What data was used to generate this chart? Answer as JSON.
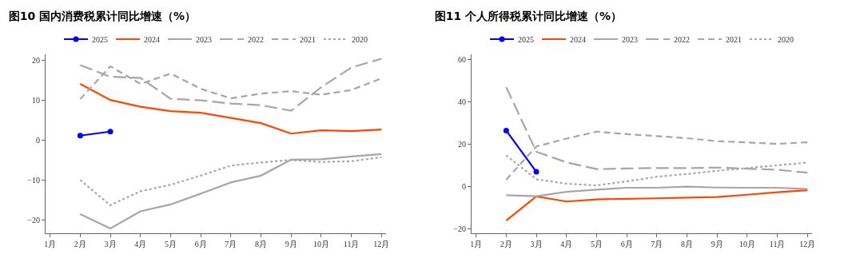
{
  "chart_data": [
    {
      "type": "line",
      "title": "图10 国内消费税累计同比增速（%）",
      "categories": [
        "1月",
        "2月",
        "3月",
        "4月",
        "5月",
        "6月",
        "7月",
        "8月",
        "9月",
        "10月",
        "11月",
        "12月"
      ],
      "ylim": [
        -23.3,
        21.4
      ],
      "yticks": [
        -20,
        -10,
        0,
        10,
        20
      ],
      "grid": false,
      "legend": "top",
      "series": [
        {
          "name": "2025",
          "color": "#0000ff",
          "line_style": "solid",
          "marker": "circle",
          "values": [
            null,
            1.1,
            2.1,
            null,
            null,
            null,
            null,
            null,
            null,
            null,
            null,
            null
          ]
        },
        {
          "name": "2024",
          "color": "#ff4500",
          "line_style": "solid",
          "marker": "none",
          "values": [
            null,
            14.0,
            10.0,
            8.3,
            7.2,
            6.8,
            5.5,
            4.2,
            1.6,
            2.4,
            2.2,
            2.6
          ]
        },
        {
          "name": "2023",
          "color": "#a6a6a6",
          "line_style": "solid",
          "marker": "none",
          "values": [
            null,
            -18.5,
            -22.1,
            -17.8,
            -16.1,
            -13.4,
            -10.6,
            -8.9,
            -4.9,
            -4.8,
            -4.1,
            -3.5
          ]
        },
        {
          "name": "2022",
          "color": "#a6a6a6",
          "line_style": "longdash",
          "marker": "none",
          "values": [
            null,
            18.7,
            15.8,
            15.5,
            10.3,
            9.9,
            9.1,
            8.7,
            7.3,
            13.2,
            18.1,
            20.3
          ]
        },
        {
          "name": "2021",
          "color": "#a6a6a6",
          "line_style": "dashed",
          "marker": "none",
          "values": [
            null,
            10.2,
            18.4,
            14.0,
            16.6,
            12.8,
            10.4,
            11.6,
            12.2,
            11.3,
            12.5,
            15.4
          ]
        },
        {
          "name": "2020",
          "color": "#a6a6a6",
          "line_style": "dotted",
          "marker": "none",
          "values": [
            null,
            -10.0,
            -16.3,
            -12.8,
            -11.2,
            -8.9,
            -6.4,
            -5.6,
            -5.0,
            -5.5,
            -5.3,
            -4.3
          ]
        }
      ]
    },
    {
      "type": "line",
      "title": "图11 个人所得税累计同比增速（%）",
      "categories": [
        "1月",
        "2月",
        "3月",
        "4月",
        "5月",
        "6月",
        "7月",
        "8月",
        "9月",
        "10月",
        "11月",
        "12月"
      ],
      "ylim": [
        -22,
        62.5
      ],
      "yticks": [
        -20,
        0,
        20,
        40,
        60
      ],
      "grid": false,
      "legend": "top",
      "series": [
        {
          "name": "2025",
          "color": "#0000ff",
          "line_style": "solid",
          "marker": "circle",
          "values": [
            null,
            26.5,
            7.0,
            null,
            null,
            null,
            null,
            null,
            null,
            null,
            null,
            null
          ]
        },
        {
          "name": "2024",
          "color": "#ff4500",
          "line_style": "solid",
          "marker": "none",
          "values": [
            null,
            -16.0,
            -4.6,
            -7.0,
            -6.0,
            -5.7,
            -5.5,
            -5.2,
            -4.9,
            -3.8,
            -2.6,
            -1.7
          ]
        },
        {
          "name": "2023",
          "color": "#a6a6a6",
          "line_style": "solid",
          "marker": "none",
          "values": [
            null,
            -4.0,
            -4.5,
            -2.4,
            -1.4,
            -0.5,
            -0.5,
            0,
            -0.4,
            -0.5,
            -0.5,
            -1.1
          ]
        },
        {
          "name": "2022",
          "color": "#a6a6a6",
          "line_style": "longdash",
          "marker": "none",
          "values": [
            null,
            47,
            16.5,
            11.5,
            8.3,
            8.6,
            8.8,
            8.8,
            9.0,
            8.5,
            8.0,
            6.6
          ]
        },
        {
          "name": "2021",
          "color": "#a6a6a6",
          "line_style": "dashed",
          "marker": "none",
          "values": [
            null,
            3.3,
            19,
            22.7,
            26,
            24.8,
            23.9,
            22.9,
            21.5,
            20.9,
            20.2,
            21.0
          ]
        },
        {
          "name": "2020",
          "color": "#a6a6a6",
          "line_style": "dotted",
          "marker": "none",
          "values": [
            null,
            14.8,
            3.5,
            1.4,
            0.6,
            2.5,
            4.7,
            6.0,
            7.5,
            8.8,
            10.1,
            11.4
          ]
        }
      ]
    }
  ]
}
